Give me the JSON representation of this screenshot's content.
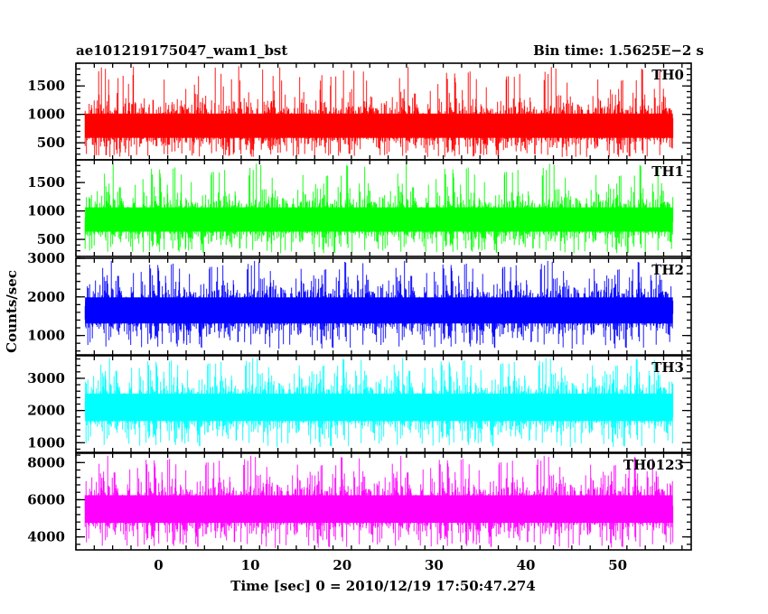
{
  "chart_data": {
    "type": "line",
    "title_left": "ae101219175047_wam1_bst",
    "title_right": "Bin time: 1.5625E−2 s",
    "xlabel": "Time [sec] 0 = 2010/12/19 17:50:47.274",
    "ylabel": "Counts/sec",
    "xlim": [
      -9,
      58
    ],
    "x_ticks": [
      0,
      10,
      20,
      30,
      40,
      50
    ],
    "x_tick_labels": [
      "0",
      "10",
      "20",
      "30",
      "40",
      "50"
    ],
    "data_range": [
      -8,
      56
    ],
    "bin_time": 0.015625,
    "grid": false,
    "panels": [
      {
        "name": "TH0",
        "color": "#ff0000",
        "ylim": [
          200,
          1900
        ],
        "y_ticks": [
          500,
          1000,
          1500
        ],
        "y_tick_labels": [
          "500",
          "1000",
          "1500"
        ],
        "mean": 800,
        "typical_low": 350,
        "typical_high": 1300,
        "min_spike": 250,
        "max_spike": 1850
      },
      {
        "name": "TH1",
        "color": "#00ff00",
        "ylim": [
          200,
          1900
        ],
        "y_ticks": [
          500,
          1000,
          1500
        ],
        "y_tick_labels": [
          "500",
          "1000",
          "1500"
        ],
        "mean": 850,
        "typical_low": 400,
        "typical_high": 1350,
        "min_spike": 250,
        "max_spike": 1850
      },
      {
        "name": "TH2",
        "color": "#0000ff",
        "ylim": [
          500,
          3000
        ],
        "y_ticks": [
          1000,
          2000,
          3000
        ],
        "y_tick_labels": [
          "1000",
          "2000",
          "3000"
        ],
        "mean": 1650,
        "typical_low": 900,
        "typical_high": 2400,
        "min_spike": 650,
        "max_spike": 2950
      },
      {
        "name": "TH3",
        "color": "#00ffff",
        "ylim": [
          700,
          3700
        ],
        "y_ticks": [
          1000,
          2000,
          3000
        ],
        "y_tick_labels": [
          "1000",
          "2000",
          "3000"
        ],
        "mean": 2100,
        "typical_low": 1200,
        "typical_high": 3100,
        "min_spike": 850,
        "max_spike": 3650
      },
      {
        "name": "TH0123",
        "color": "#ff00ff",
        "ylim": [
          3300,
          8500
        ],
        "y_ticks": [
          4000,
          6000,
          8000
        ],
        "y_tick_labels": [
          "4000",
          "6000",
          "8000"
        ],
        "mean": 5500,
        "typical_low": 3900,
        "typical_high": 7200,
        "min_spike": 3400,
        "max_spike": 8400
      }
    ]
  }
}
